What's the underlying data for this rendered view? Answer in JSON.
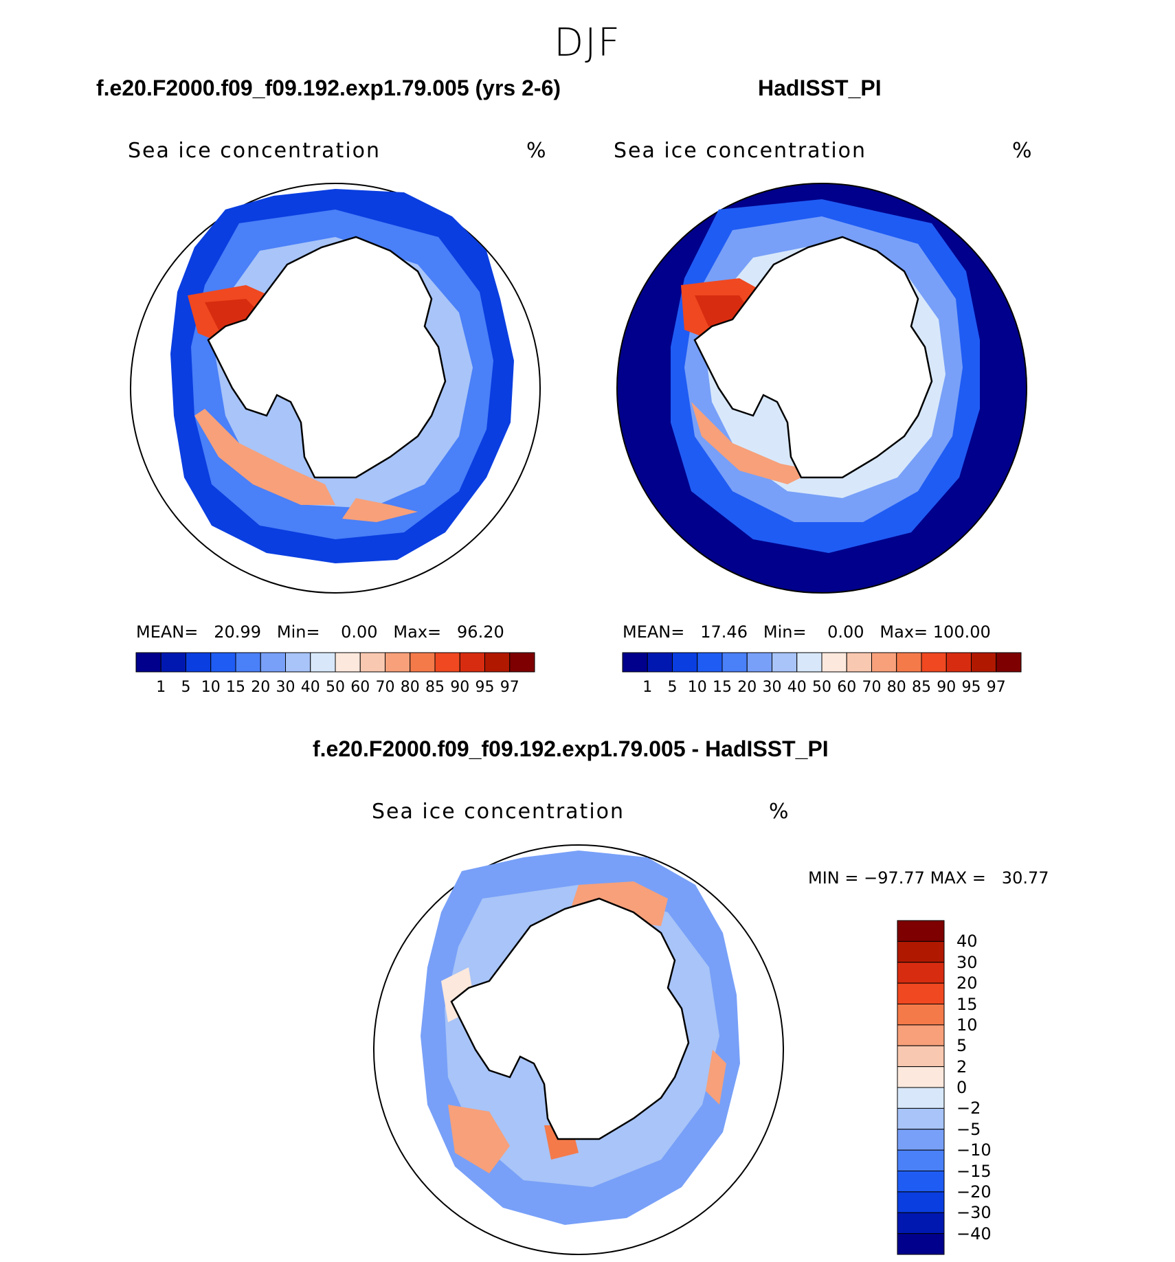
{
  "page": {
    "season": "DJF"
  },
  "panels": [
    {
      "run_title": "f.e20.F2000.f09_f09.192.exp1.79.005 (yrs 2-6)",
      "plot_title": "Sea ice concentration",
      "units": "%",
      "stats": {
        "mean_label": "MEAN=",
        "mean": "20.99",
        "min_label": "Min=",
        "min": "0.00",
        "max_label": "Max=",
        "max": "96.20"
      }
    },
    {
      "run_title": "HadISST_PI",
      "plot_title": "Sea ice concentration",
      "units": "%",
      "stats": {
        "mean_label": "MEAN=",
        "mean": "17.46",
        "min_label": "Min=",
        "min": "0.00",
        "max_label": "Max=",
        "max": "100.00"
      }
    }
  ],
  "diff_panel": {
    "title": "f.e20.F2000.f09_f09.192.exp1.79.005 - HadISST_PI",
    "plot_title": "Sea ice concentration",
    "units": "%",
    "min_label": "MIN =",
    "min": "−97.77",
    "max_label": "MAX =",
    "max": "30.77"
  },
  "colorbar_abs": {
    "ticks": [
      "1",
      "5",
      "10",
      "15",
      "20",
      "30",
      "40",
      "50",
      "60",
      "70",
      "80",
      "85",
      "90",
      "95",
      "97"
    ],
    "colors": [
      "#00008c",
      "#0018b0",
      "#0a3ee0",
      "#1f5cf4",
      "#4a80f8",
      "#78a0f8",
      "#a8c4f8",
      "#d8e8fa",
      "#fce8dc",
      "#f9c8b0",
      "#f7a07a",
      "#f47a4a",
      "#f04820",
      "#d82c10",
      "#b01800",
      "#7e0000"
    ]
  },
  "colorbar_diff": {
    "ticks": [
      "40",
      "30",
      "20",
      "15",
      "10",
      "5",
      "2",
      "0",
      "−2",
      "−5",
      "−10",
      "−15",
      "−20",
      "−30",
      "−40"
    ],
    "colors": [
      "#7e0000",
      "#b01800",
      "#d82c10",
      "#f04820",
      "#f47a4a",
      "#f7a07a",
      "#f9c8b0",
      "#fce8dc",
      "#d8e8fa",
      "#a8c4f8",
      "#78a0f8",
      "#4a80f8",
      "#1f5cf4",
      "#0a3ee0",
      "#0018b0",
      "#00008c"
    ]
  }
}
